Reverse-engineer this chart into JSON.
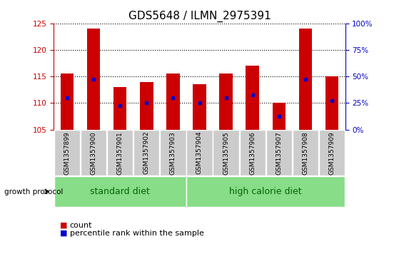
{
  "title": "GDS5648 / ILMN_2975391",
  "samples": [
    "GSM1357899",
    "GSM1357900",
    "GSM1357901",
    "GSM1357902",
    "GSM1357903",
    "GSM1357904",
    "GSM1357905",
    "GSM1357906",
    "GSM1357907",
    "GSM1357908",
    "GSM1357909"
  ],
  "bar_values": [
    115.5,
    124.0,
    113.0,
    114.0,
    115.5,
    113.5,
    115.5,
    117.0,
    110.0,
    124.0,
    115.0
  ],
  "blue_values": [
    111.0,
    114.5,
    109.5,
    110.0,
    111.0,
    110.0,
    111.0,
    111.5,
    107.5,
    114.5,
    110.5
  ],
  "ymin": 105,
  "ymax": 125,
  "yticks": [
    105,
    110,
    115,
    120,
    125
  ],
  "right_yticks": [
    0,
    25,
    50,
    75,
    100
  ],
  "right_ytick_labels": [
    "0%",
    "25%",
    "50%",
    "75%",
    "100%"
  ],
  "bar_color": "#cc0000",
  "blue_color": "#0000cc",
  "bar_bottom": 105,
  "group1_label": "standard diet",
  "group2_label": "high calorie diet",
  "group1_indices": [
    0,
    1,
    2,
    3,
    4
  ],
  "group2_indices": [
    5,
    6,
    7,
    8,
    9,
    10
  ],
  "growth_protocol_label": "growth protocol",
  "legend_count_label": "count",
  "legend_percentile_label": "percentile rank within the sample",
  "group_label_color": "#006600",
  "group_bg_color": "#88dd88",
  "sample_bg_color": "#cccccc",
  "right_axis_color": "#0000cc",
  "left_axis_color": "#cc0000",
  "title_fontsize": 11,
  "tick_fontsize": 7.5,
  "label_fontsize": 9,
  "bar_width": 0.5
}
